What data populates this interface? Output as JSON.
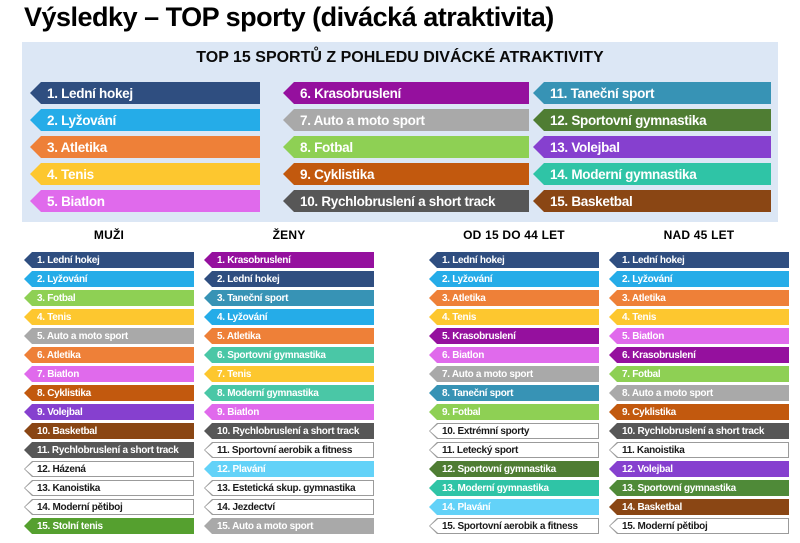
{
  "title": "Výsledky – TOP sporty (divácká atraktivita)",
  "panel": {
    "heading": "TOP 15 SPORTŮ Z POHLEDU DIVÁCKÉ ATRAKTIVITY",
    "bg": "#DCE7F5",
    "columns": [
      {
        "items": [
          {
            "label": "1. Lední hokej",
            "fill": "#2F4E80",
            "text": "#FFFFFF",
            "border": "#2F4E80"
          },
          {
            "label": "2. Lyžování",
            "fill": "#25ACE8",
            "text": "#FFFFFF",
            "border": "#25ACE8"
          },
          {
            "label": "3. Atletika",
            "fill": "#EE8038",
            "text": "#FFFFFF",
            "border": "#EE8038"
          },
          {
            "label": "4. Tenis",
            "fill": "#FDC72F",
            "text": "#FFFFFF",
            "border": "#FDC72F"
          },
          {
            "label": "5. Biatlon",
            "fill": "#E06AEC",
            "text": "#FFFFFF",
            "border": "#E06AEC"
          }
        ]
      },
      {
        "items": [
          {
            "label": "6. Krasobruslení",
            "fill": "#95109E",
            "text": "#FFFFFF",
            "border": "#95109E"
          },
          {
            "label": "7. Auto a moto sport",
            "fill": "#A9A9A9",
            "text": "#FFFFFF",
            "border": "#A9A9A9"
          },
          {
            "label": "8. Fotbal",
            "fill": "#8ED054",
            "text": "#FFFFFF",
            "border": "#8ED054"
          },
          {
            "label": "9. Cyklistika",
            "fill": "#C2590E",
            "text": "#FFFFFF",
            "border": "#C2590E"
          },
          {
            "label": "10. Rychlobruslení a short track",
            "fill": "#575757",
            "text": "#FFFFFF",
            "border": "#575757"
          }
        ]
      },
      {
        "items": [
          {
            "label": "11. Taneční sport",
            "fill": "#3793B5",
            "text": "#FFFFFF",
            "border": "#3793B5"
          },
          {
            "label": "12. Sportovní gymnastika",
            "fill": "#4F7D33",
            "text": "#FFFFFF",
            "border": "#4F7D33"
          },
          {
            "label": "13. Volejbal",
            "fill": "#8640CF",
            "text": "#FFFFFF",
            "border": "#8640CF"
          },
          {
            "label": "14. Moderní gymnastika",
            "fill": "#2FC4A6",
            "text": "#FFFFFF",
            "border": "#2FC4A6"
          },
          {
            "label": "15. Basketbal",
            "fill": "#8A4614",
            "text": "#FFFFFF",
            "border": "#8A4614"
          }
        ]
      }
    ]
  },
  "lists": [
    {
      "header": "MUŽI",
      "items": [
        {
          "label": "1. Lední hokej",
          "fill": "#2F4E80",
          "text": "#FFFFFF",
          "border": "#2F4E80"
        },
        {
          "label": "2. Lyžování",
          "fill": "#25ACE8",
          "text": "#FFFFFF",
          "border": "#25ACE8"
        },
        {
          "label": "3. Fotbal",
          "fill": "#8ED054",
          "text": "#FFFFFF",
          "border": "#8ED054"
        },
        {
          "label": "4. Tenis",
          "fill": "#FDC72F",
          "text": "#FFFFFF",
          "border": "#FDC72F"
        },
        {
          "label": "5. Auto a moto sport",
          "fill": "#A9A9A9",
          "text": "#FFFFFF",
          "border": "#A9A9A9"
        },
        {
          "label": "6. Atletika",
          "fill": "#EE8038",
          "text": "#FFFFFF",
          "border": "#EE8038"
        },
        {
          "label": "7. Biatlon",
          "fill": "#E06AEC",
          "text": "#FFFFFF",
          "border": "#E06AEC"
        },
        {
          "label": "8. Cyklistika",
          "fill": "#C2590E",
          "text": "#FFFFFF",
          "border": "#C2590E"
        },
        {
          "label": "9. Volejbal",
          "fill": "#8640CF",
          "text": "#FFFFFF",
          "border": "#8640CF"
        },
        {
          "label": "10. Basketbal",
          "fill": "#8A4614",
          "text": "#FFFFFF",
          "border": "#8A4614"
        },
        {
          "label": "11. Rychlobruslení a short track",
          "fill": "#575757",
          "text": "#FFFFFF",
          "border": "#575757"
        },
        {
          "label": "12. Házená",
          "fill": "#FFFFFF",
          "text": "#1A1A1A",
          "border": "#9B9B9B"
        },
        {
          "label": "13. Kanoistika",
          "fill": "#FFFFFF",
          "text": "#1A1A1A",
          "border": "#9B9B9B"
        },
        {
          "label": "14. Moderní pětiboj",
          "fill": "#FFFFFF",
          "text": "#1A1A1A",
          "border": "#9B9B9B"
        },
        {
          "label": "15. Stolní tenis",
          "fill": "#55A02F",
          "text": "#FFFFFF",
          "border": "#55A02F"
        }
      ]
    },
    {
      "header": "ŽENY",
      "items": [
        {
          "label": "1. Krasobruslení",
          "fill": "#95109E",
          "text": "#FFFFFF",
          "border": "#95109E"
        },
        {
          "label": "2. Lední hokej",
          "fill": "#2F4E80",
          "text": "#FFFFFF",
          "border": "#2F4E80"
        },
        {
          "label": "3. Taneční sport",
          "fill": "#3793B5",
          "text": "#FFFFFF",
          "border": "#3793B5"
        },
        {
          "label": "4. Lyžování",
          "fill": "#25ACE8",
          "text": "#FFFFFF",
          "border": "#25ACE8"
        },
        {
          "label": "5. Atletika",
          "fill": "#EE8038",
          "text": "#FFFFFF",
          "border": "#EE8038"
        },
        {
          "label": "6. Sportovní gymnastika",
          "fill": "#4AC7A6",
          "text": "#FFFFFF",
          "border": "#4AC7A6"
        },
        {
          "label": "7. Tenis",
          "fill": "#FDC72F",
          "text": "#FFFFFF",
          "border": "#FDC72F"
        },
        {
          "label": "8. Moderní gymnastika",
          "fill": "#4AC7A6",
          "text": "#FFFFFF",
          "border": "#4AC7A6"
        },
        {
          "label": "9. Biatlon",
          "fill": "#E06AEC",
          "text": "#FFFFFF",
          "border": "#E06AEC"
        },
        {
          "label": "10. Rychlobruslení a short track",
          "fill": "#575757",
          "text": "#FFFFFF",
          "border": "#575757"
        },
        {
          "label": "11. Sportovní aerobik a fitness",
          "fill": "#FFFFFF",
          "text": "#1A1A1A",
          "border": "#9B9B9B"
        },
        {
          "label": "12. Plavání",
          "fill": "#63D2F8",
          "text": "#FFFFFF",
          "border": "#63D2F8"
        },
        {
          "label": "13. Estetická skup. gymnastika",
          "fill": "#FFFFFF",
          "text": "#1A1A1A",
          "border": "#9B9B9B"
        },
        {
          "label": "14. Jezdectví",
          "fill": "#FFFFFF",
          "text": "#1A1A1A",
          "border": "#9B9B9B"
        },
        {
          "label": "15. Auto a moto sport",
          "fill": "#A9A9A9",
          "text": "#FFFFFF",
          "border": "#A9A9A9"
        }
      ]
    },
    {
      "header": "OD 15 DO 44 LET",
      "items": [
        {
          "label": "1. Lední hokej",
          "fill": "#2F4E80",
          "text": "#FFFFFF",
          "border": "#2F4E80"
        },
        {
          "label": "2. Lyžování",
          "fill": "#25ACE8",
          "text": "#FFFFFF",
          "border": "#25ACE8"
        },
        {
          "label": "3. Atletika",
          "fill": "#EE8038",
          "text": "#FFFFFF",
          "border": "#EE8038"
        },
        {
          "label": "4. Tenis",
          "fill": "#FDC72F",
          "text": "#FFFFFF",
          "border": "#FDC72F"
        },
        {
          "label": "5. Krasobruslení",
          "fill": "#95109E",
          "text": "#FFFFFF",
          "border": "#95109E"
        },
        {
          "label": "6. Biatlon",
          "fill": "#E06AEC",
          "text": "#FFFFFF",
          "border": "#E06AEC"
        },
        {
          "label": "7. Auto a moto sport",
          "fill": "#A9A9A9",
          "text": "#FFFFFF",
          "border": "#A9A9A9"
        },
        {
          "label": "8. Taneční sport",
          "fill": "#3793B5",
          "text": "#FFFFFF",
          "border": "#3793B5"
        },
        {
          "label": "9. Fotbal",
          "fill": "#8ED054",
          "text": "#FFFFFF",
          "border": "#8ED054"
        },
        {
          "label": "10. Extrémní sporty",
          "fill": "#FFFFFF",
          "text": "#1A1A1A",
          "border": "#9B9B9B"
        },
        {
          "label": "11. Letecký sport",
          "fill": "#FFFFFF",
          "text": "#1A1A1A",
          "border": "#9B9B9B"
        },
        {
          "label": "12. Sportovní gymnastika",
          "fill": "#4F7D33",
          "text": "#FFFFFF",
          "border": "#4F7D33"
        },
        {
          "label": "13. Moderní gymnastika",
          "fill": "#2FC4A6",
          "text": "#FFFFFF",
          "border": "#2FC4A6"
        },
        {
          "label": "14. Plavání",
          "fill": "#63D2F8",
          "text": "#FFFFFF",
          "border": "#63D2F8"
        },
        {
          "label": "15. Sportovní aerobik a fitness",
          "fill": "#FFFFFF",
          "text": "#1A1A1A",
          "border": "#9B9B9B"
        }
      ]
    },
    {
      "header": "NAD 45 LET",
      "items": [
        {
          "label": "1. Lední hokej",
          "fill": "#2F4E80",
          "text": "#FFFFFF",
          "border": "#2F4E80"
        },
        {
          "label": "2. Lyžování",
          "fill": "#25ACE8",
          "text": "#FFFFFF",
          "border": "#25ACE8"
        },
        {
          "label": "3. Atletika",
          "fill": "#EE8038",
          "text": "#FFFFFF",
          "border": "#EE8038"
        },
        {
          "label": "4. Tenis",
          "fill": "#FDC72F",
          "text": "#FFFFFF",
          "border": "#FDC72F"
        },
        {
          "label": "5. Biatlon",
          "fill": "#E06AEC",
          "text": "#FFFFFF",
          "border": "#E06AEC"
        },
        {
          "label": "6. Krasobruslení",
          "fill": "#95109E",
          "text": "#FFFFFF",
          "border": "#95109E"
        },
        {
          "label": "7. Fotbal",
          "fill": "#8ED054",
          "text": "#FFFFFF",
          "border": "#8ED054"
        },
        {
          "label": "8. Auto a moto sport",
          "fill": "#A9A9A9",
          "text": "#FFFFFF",
          "border": "#A9A9A9"
        },
        {
          "label": "9. Cyklistika",
          "fill": "#C2590E",
          "text": "#FFFFFF",
          "border": "#C2590E"
        },
        {
          "label": "10. Rychlobruslení a short track",
          "fill": "#575757",
          "text": "#FFFFFF",
          "border": "#575757"
        },
        {
          "label": "11. Kanoistika",
          "fill": "#FFFFFF",
          "text": "#1A1A1A",
          "border": "#9B9B9B"
        },
        {
          "label": "12. Volejbal",
          "fill": "#8640CF",
          "text": "#FFFFFF",
          "border": "#8640CF"
        },
        {
          "label": "13. Sportovní gymnastika",
          "fill": "#4F8A38",
          "text": "#FFFFFF",
          "border": "#4F8A38"
        },
        {
          "label": "14. Basketbal",
          "fill": "#8A4614",
          "text": "#FFFFFF",
          "border": "#8A4614"
        },
        {
          "label": "15. Moderní pětiboj",
          "fill": "#FFFFFF",
          "text": "#1A1A1A",
          "border": "#9B9B9B"
        }
      ]
    }
  ]
}
